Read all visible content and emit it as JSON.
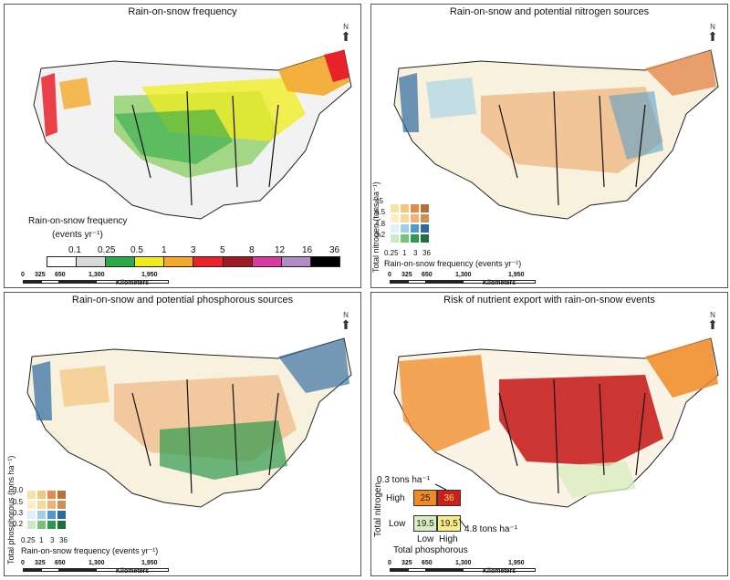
{
  "panels": [
    {
      "title": "Rain-on-snow frequency"
    },
    {
      "title": "Rain-on-snow and potential nitrogen sources"
    },
    {
      "title": "Rain-on-snow and potential phosphorous sources"
    },
    {
      "title": "Risk of nutrient export with rain-on-snow events"
    }
  ],
  "north_label": "N",
  "scale": {
    "ticks": [
      "0",
      "325",
      "650",
      "1,300",
      "1,950"
    ],
    "unit": "Kilometers"
  },
  "freq_legend": {
    "title_line1": "Rain-on-snow frequency",
    "title_line2": "(events yr⁻¹)",
    "breaks": [
      "0.1",
      "0.25",
      "0.5",
      "1",
      "3",
      "5",
      "8",
      "12",
      "16",
      "36"
    ],
    "colors": [
      "#ffffff",
      "#d9d9d9",
      "#2ea84a",
      "#f0ec1a",
      "#f4a92b",
      "#e8212b",
      "#9c1a24",
      "#d63c9d",
      "#b08bc4",
      "#000000"
    ]
  },
  "nitrogen_legend": {
    "ylabel": "Total nitrogen (tons ha⁻¹)",
    "y_ticks": [
      "45",
      "6.5",
      "4.8",
      "3.2"
    ],
    "x_ticks": [
      "0.25",
      "1",
      "3",
      "36"
    ],
    "xlabel": "Rain-on-snow frequency (events yr⁻¹)"
  },
  "phosphorus_legend": {
    "ylabel": "Total phosphorous (tons ha⁻¹)",
    "y_ticks": [
      "3.0",
      "0.5",
      "0.3",
      "0.2"
    ],
    "x_ticks": [
      "0.25",
      "1",
      "3",
      "36"
    ],
    "xlabel": "Rain-on-snow frequency (events yr⁻¹)"
  },
  "bivariate_colors": [
    [
      "#f6e3a8",
      "#f3c57e",
      "#e38b4f",
      "#b5713c"
    ],
    [
      "#fbf0c4",
      "#f7d89a",
      "#f0b27b",
      "#c99058"
    ],
    [
      "#dff0f7",
      "#9fd0e6",
      "#4d9bcc",
      "#2c6aa0"
    ],
    [
      "#cde9c4",
      "#76c27a",
      "#2e9a4e",
      "#1f6e3b"
    ]
  ],
  "risk_legend": {
    "ylabel": "Total nitrogen",
    "row_high": "High",
    "row_low": "Low",
    "col_low": "Low",
    "col_high": "High",
    "xlabel": "Total phosphorous",
    "cells": [
      "25",
      "36",
      "19.5",
      "19.5"
    ],
    "cell_colors": [
      "#f08a24",
      "#c8201e",
      "#d9edc0",
      "#f7ec8a"
    ],
    "annot_top": "0.3 tons ha⁻¹",
    "annot_bottom": "4.8 tons ha⁻¹"
  }
}
